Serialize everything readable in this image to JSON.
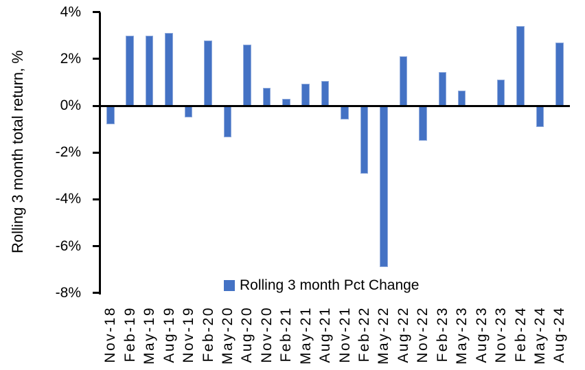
{
  "chart_data": {
    "type": "bar",
    "title": "",
    "categories": [
      "Nov-18",
      "Feb-19",
      "May-19",
      "Aug-19",
      "Nov-19",
      "Feb-20",
      "May-20",
      "Aug-20",
      "Nov-20",
      "Feb-21",
      "May-21",
      "Aug-21",
      "Nov-21",
      "Feb-22",
      "May-22",
      "Aug-22",
      "Nov-22",
      "Feb-23",
      "May-23",
      "Aug-23",
      "Nov-23",
      "Feb-24",
      "May-24",
      "Aug-24"
    ],
    "values": [
      -0.8,
      3.0,
      3.0,
      3.1,
      -0.5,
      2.8,
      -1.35,
      2.6,
      0.75,
      0.3,
      0.95,
      1.05,
      -0.6,
      -2.9,
      -6.9,
      2.1,
      -1.5,
      1.45,
      0.65,
      0.0,
      1.1,
      3.4,
      -0.9,
      2.7
    ],
    "series_name": "Rolling 3 month Pct Change",
    "xlabel": "",
    "ylabel": "Rolling 3 month total return, %",
    "ylim": [
      -8,
      4
    ],
    "ytick_step": 2,
    "ytick_labels": [
      "4%",
      "2%",
      "0%",
      "-2%",
      "-4%",
      "-6%",
      "-8%"
    ],
    "ytick_values": [
      4,
      2,
      0,
      -2,
      -4,
      -6,
      -8
    ],
    "grid": false,
    "legend_position": "bottom-center",
    "colors": {
      "bar": "#4472C4",
      "bar_edge": "#8FAADC",
      "axis": "#000000",
      "text": "#000000",
      "background": "#FFFFFF"
    }
  },
  "legend": {
    "label": "Rolling 3 month Pct Change"
  }
}
